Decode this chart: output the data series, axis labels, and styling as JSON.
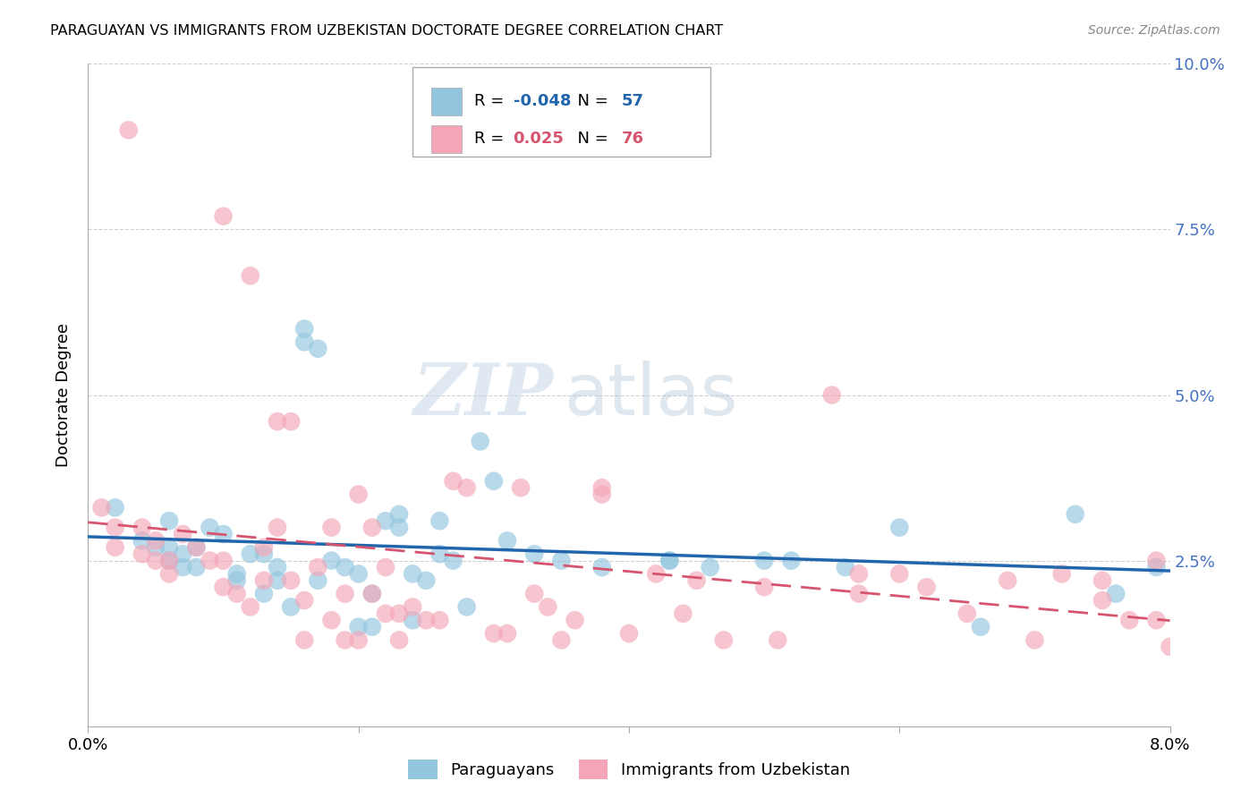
{
  "title": "PARAGUAYAN VS IMMIGRANTS FROM UZBEKISTAN DOCTORATE DEGREE CORRELATION CHART",
  "source": "Source: ZipAtlas.com",
  "ylabel": "Doctorate Degree",
  "legend_label1": "Paraguayans",
  "legend_label2": "Immigrants from Uzbekistan",
  "R1": "-0.048",
  "N1": "57",
  "R2": "0.025",
  "N2": "76",
  "color_blue": "#92c5de",
  "color_pink": "#f4a6b8",
  "color_blue_line": "#2166ac",
  "color_pink_line": "#d6546e",
  "background_color": "#ffffff",
  "grid_color": "#d0d0d0",
  "watermark_zip": "ZIP",
  "watermark_atlas": "atlas",
  "blue_points": [
    [
      0.002,
      0.033
    ],
    [
      0.004,
      0.028
    ],
    [
      0.005,
      0.027
    ],
    [
      0.006,
      0.031
    ],
    [
      0.006,
      0.027
    ],
    [
      0.006,
      0.025
    ],
    [
      0.007,
      0.024
    ],
    [
      0.007,
      0.026
    ],
    [
      0.008,
      0.027
    ],
    [
      0.008,
      0.024
    ],
    [
      0.009,
      0.03
    ],
    [
      0.01,
      0.029
    ],
    [
      0.011,
      0.022
    ],
    [
      0.011,
      0.023
    ],
    [
      0.012,
      0.026
    ],
    [
      0.013,
      0.02
    ],
    [
      0.013,
      0.026
    ],
    [
      0.014,
      0.022
    ],
    [
      0.014,
      0.024
    ],
    [
      0.015,
      0.018
    ],
    [
      0.016,
      0.06
    ],
    [
      0.016,
      0.058
    ],
    [
      0.017,
      0.057
    ],
    [
      0.017,
      0.022
    ],
    [
      0.018,
      0.025
    ],
    [
      0.019,
      0.024
    ],
    [
      0.02,
      0.023
    ],
    [
      0.02,
      0.015
    ],
    [
      0.021,
      0.02
    ],
    [
      0.021,
      0.015
    ],
    [
      0.022,
      0.031
    ],
    [
      0.023,
      0.032
    ],
    [
      0.023,
      0.03
    ],
    [
      0.024,
      0.023
    ],
    [
      0.024,
      0.016
    ],
    [
      0.025,
      0.022
    ],
    [
      0.026,
      0.026
    ],
    [
      0.026,
      0.031
    ],
    [
      0.027,
      0.025
    ],
    [
      0.028,
      0.018
    ],
    [
      0.029,
      0.043
    ],
    [
      0.03,
      0.037
    ],
    [
      0.031,
      0.028
    ],
    [
      0.033,
      0.026
    ],
    [
      0.035,
      0.025
    ],
    [
      0.038,
      0.024
    ],
    [
      0.043,
      0.025
    ],
    [
      0.043,
      0.025
    ],
    [
      0.046,
      0.024
    ],
    [
      0.05,
      0.025
    ],
    [
      0.052,
      0.025
    ],
    [
      0.056,
      0.024
    ],
    [
      0.06,
      0.03
    ],
    [
      0.066,
      0.015
    ],
    [
      0.073,
      0.032
    ],
    [
      0.076,
      0.02
    ],
    [
      0.079,
      0.024
    ]
  ],
  "pink_points": [
    [
      0.001,
      0.033
    ],
    [
      0.002,
      0.03
    ],
    [
      0.002,
      0.027
    ],
    [
      0.003,
      0.09
    ],
    [
      0.004,
      0.03
    ],
    [
      0.004,
      0.026
    ],
    [
      0.005,
      0.028
    ],
    [
      0.005,
      0.025
    ],
    [
      0.006,
      0.025
    ],
    [
      0.006,
      0.023
    ],
    [
      0.007,
      0.029
    ],
    [
      0.008,
      0.027
    ],
    [
      0.009,
      0.025
    ],
    [
      0.01,
      0.077
    ],
    [
      0.01,
      0.025
    ],
    [
      0.01,
      0.021
    ],
    [
      0.011,
      0.02
    ],
    [
      0.012,
      0.018
    ],
    [
      0.012,
      0.068
    ],
    [
      0.013,
      0.027
    ],
    [
      0.013,
      0.022
    ],
    [
      0.014,
      0.03
    ],
    [
      0.014,
      0.046
    ],
    [
      0.015,
      0.046
    ],
    [
      0.015,
      0.022
    ],
    [
      0.016,
      0.019
    ],
    [
      0.016,
      0.013
    ],
    [
      0.017,
      0.024
    ],
    [
      0.018,
      0.03
    ],
    [
      0.018,
      0.016
    ],
    [
      0.019,
      0.02
    ],
    [
      0.019,
      0.013
    ],
    [
      0.02,
      0.035
    ],
    [
      0.02,
      0.013
    ],
    [
      0.021,
      0.03
    ],
    [
      0.021,
      0.02
    ],
    [
      0.022,
      0.024
    ],
    [
      0.022,
      0.017
    ],
    [
      0.023,
      0.017
    ],
    [
      0.023,
      0.013
    ],
    [
      0.024,
      0.018
    ],
    [
      0.025,
      0.016
    ],
    [
      0.026,
      0.016
    ],
    [
      0.027,
      0.037
    ],
    [
      0.028,
      0.036
    ],
    [
      0.03,
      0.014
    ],
    [
      0.031,
      0.014
    ],
    [
      0.032,
      0.036
    ],
    [
      0.033,
      0.02
    ],
    [
      0.034,
      0.018
    ],
    [
      0.035,
      0.013
    ],
    [
      0.036,
      0.016
    ],
    [
      0.038,
      0.036
    ],
    [
      0.038,
      0.035
    ],
    [
      0.04,
      0.014
    ],
    [
      0.042,
      0.023
    ],
    [
      0.044,
      0.017
    ],
    [
      0.045,
      0.022
    ],
    [
      0.047,
      0.013
    ],
    [
      0.05,
      0.021
    ],
    [
      0.051,
      0.013
    ],
    [
      0.055,
      0.05
    ],
    [
      0.057,
      0.023
    ],
    [
      0.057,
      0.02
    ],
    [
      0.06,
      0.023
    ],
    [
      0.062,
      0.021
    ],
    [
      0.065,
      0.017
    ],
    [
      0.068,
      0.022
    ],
    [
      0.07,
      0.013
    ],
    [
      0.072,
      0.023
    ],
    [
      0.075,
      0.022
    ],
    [
      0.075,
      0.019
    ],
    [
      0.077,
      0.016
    ],
    [
      0.079,
      0.025
    ],
    [
      0.079,
      0.016
    ],
    [
      0.08,
      0.012
    ]
  ]
}
